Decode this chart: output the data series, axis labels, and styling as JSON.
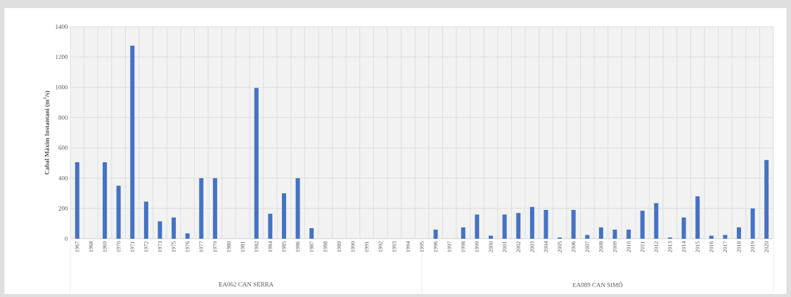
{
  "chart_data": {
    "type": "bar",
    "ylabel": "Cabal Màxim Instantani (m$^{3}$/s)",
    "categories": [
      "1967",
      "1968",
      "1969",
      "1970",
      "1971",
      "1972",
      "1973",
      "1975",
      "1976",
      "1977",
      "1979",
      "1980",
      "1981",
      "1982",
      "1984",
      "1985",
      "1986",
      "1987",
      "1988",
      "1989",
      "1990",
      "1991",
      "1992",
      "1993",
      "1994",
      "1995",
      "1996",
      "1997",
      "1998",
      "1999",
      "2000",
      "2001",
      "2002",
      "2003",
      "2004",
      "2005",
      "2006",
      "2007",
      "2008",
      "2009",
      "2010",
      "2011",
      "2012",
      "2013",
      "2014",
      "2015",
      "2016",
      "2017",
      "2018",
      "2019",
      "2020"
    ],
    "values": [
      505,
      null,
      505,
      350,
      1275,
      245,
      115,
      140,
      35,
      400,
      400,
      null,
      null,
      995,
      165,
      300,
      400,
      70,
      null,
      null,
      null,
      null,
      null,
      null,
      null,
      null,
      60,
      null,
      75,
      160,
      20,
      160,
      170,
      210,
      190,
      8,
      190,
      25,
      75,
      60,
      60,
      185,
      235,
      8,
      140,
      280,
      20,
      25,
      75,
      200,
      520
    ],
    "color": "#4472c4",
    "ylim": [
      0,
      1400
    ],
    "yticks": [
      0,
      200,
      400,
      600,
      800,
      1000,
      1200,
      1400
    ],
    "grid": true,
    "annotations": [
      "EA062 CAN SERRA",
      "EA089 CAN SIMÓ"
    ]
  }
}
